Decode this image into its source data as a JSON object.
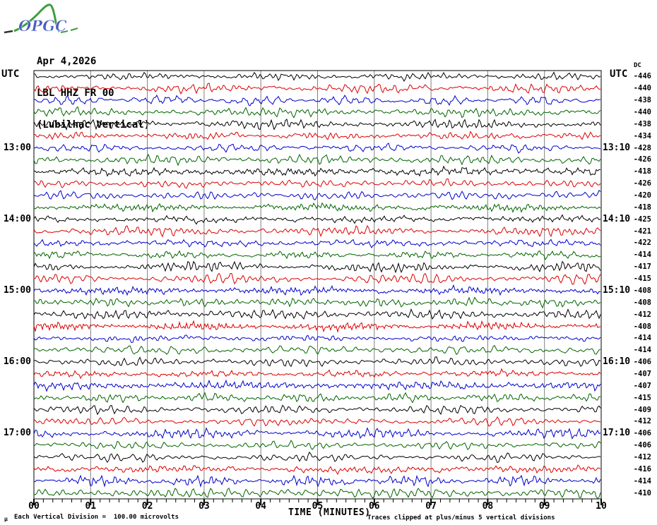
{
  "logo": {
    "text": "OPGC",
    "text_color": "#4a5fc1",
    "curve_color": "#3f9e3f"
  },
  "header": {
    "date": "Apr 4,2026",
    "channel": "LBL HHZ FR 00",
    "station_name": "(Lubilhac Vertical)"
  },
  "labels": {
    "utc_left": "UTC",
    "utc_right": "UTC",
    "dc_header": "DC",
    "micro_symbol": "µ"
  },
  "footer": {
    "scale_note": "Each Vertical Division =  100.00 microvolts",
    "clip_note": "Traces clipped at plus/minus 5 vertical divisions"
  },
  "chart_data": {
    "type": "line",
    "title": "OPGC helicorder drum plot — LBL HHZ FR 00 (Lubilhac Vertical), Apr 4, 2026",
    "xlabel": "TIME (MINUTES)",
    "x_ticks": [
      "00",
      "01",
      "02",
      "03",
      "04",
      "05",
      "06",
      "07",
      "08",
      "09",
      "10"
    ],
    "x_range_minutes": [
      0,
      10
    ],
    "minor_ticks_per_minute": 6,
    "minutes_per_row": 10,
    "amplitude_clip_divisions": 5,
    "microvolts_per_division": "100.00",
    "grid": true,
    "legend": "none",
    "colors": {
      "black": "#000000",
      "red": "#dd0000",
      "blue": "#0000cd",
      "green": "#006400",
      "grid": "#808080",
      "frame": "#000000"
    },
    "rows": [
      {
        "color": "black",
        "dc": "-446",
        "left_label": "",
        "right_label": ""
      },
      {
        "color": "red",
        "dc": "-440",
        "left_label": "",
        "right_label": ""
      },
      {
        "color": "blue",
        "dc": "-438",
        "left_label": "",
        "right_label": ""
      },
      {
        "color": "green",
        "dc": "-440",
        "left_label": "",
        "right_label": ""
      },
      {
        "color": "black",
        "dc": "-438",
        "left_label": "",
        "right_label": ""
      },
      {
        "color": "red",
        "dc": "-434",
        "left_label": "",
        "right_label": ""
      },
      {
        "color": "blue",
        "dc": "-428",
        "left_label": "13:00",
        "right_label": "13:10"
      },
      {
        "color": "green",
        "dc": "-426",
        "left_label": "",
        "right_label": ""
      },
      {
        "color": "black",
        "dc": "-418",
        "left_label": "",
        "right_label": ""
      },
      {
        "color": "red",
        "dc": "-426",
        "left_label": "",
        "right_label": ""
      },
      {
        "color": "blue",
        "dc": "-420",
        "left_label": "",
        "right_label": ""
      },
      {
        "color": "green",
        "dc": "-418",
        "left_label": "",
        "right_label": ""
      },
      {
        "color": "black",
        "dc": "-425",
        "left_label": "14:00",
        "right_label": "14:10"
      },
      {
        "color": "red",
        "dc": "-421",
        "left_label": "",
        "right_label": ""
      },
      {
        "color": "blue",
        "dc": "-422",
        "left_label": "",
        "right_label": ""
      },
      {
        "color": "green",
        "dc": "-414",
        "left_label": "",
        "right_label": ""
      },
      {
        "color": "black",
        "dc": "-417",
        "left_label": "",
        "right_label": ""
      },
      {
        "color": "red",
        "dc": "-415",
        "left_label": "",
        "right_label": ""
      },
      {
        "color": "blue",
        "dc": "-408",
        "left_label": "15:00",
        "right_label": "15:10"
      },
      {
        "color": "green",
        "dc": "-408",
        "left_label": "",
        "right_label": ""
      },
      {
        "color": "black",
        "dc": "-412",
        "left_label": "",
        "right_label": ""
      },
      {
        "color": "red",
        "dc": "-408",
        "left_label": "",
        "right_label": ""
      },
      {
        "color": "blue",
        "dc": "-414",
        "left_label": "",
        "right_label": ""
      },
      {
        "color": "green",
        "dc": "-414",
        "left_label": "",
        "right_label": ""
      },
      {
        "color": "black",
        "dc": "-406",
        "left_label": "16:00",
        "right_label": "16:10"
      },
      {
        "color": "red",
        "dc": "-407",
        "left_label": "",
        "right_label": ""
      },
      {
        "color": "blue",
        "dc": "-407",
        "left_label": "",
        "right_label": ""
      },
      {
        "color": "green",
        "dc": "-415",
        "left_label": "",
        "right_label": ""
      },
      {
        "color": "black",
        "dc": "-409",
        "left_label": "",
        "right_label": ""
      },
      {
        "color": "red",
        "dc": "-412",
        "left_label": "",
        "right_label": ""
      },
      {
        "color": "blue",
        "dc": "-406",
        "left_label": "17:00",
        "right_label": "17:10"
      },
      {
        "color": "green",
        "dc": "-406",
        "left_label": "",
        "right_label": ""
      },
      {
        "color": "black",
        "dc": "-412",
        "left_label": "",
        "right_label": ""
      },
      {
        "color": "red",
        "dc": "-416",
        "left_label": "",
        "right_label": ""
      },
      {
        "color": "blue",
        "dc": "-414",
        "left_label": "",
        "right_label": ""
      },
      {
        "color": "green",
        "dc": "-410",
        "left_label": "",
        "right_label": ""
      }
    ]
  }
}
